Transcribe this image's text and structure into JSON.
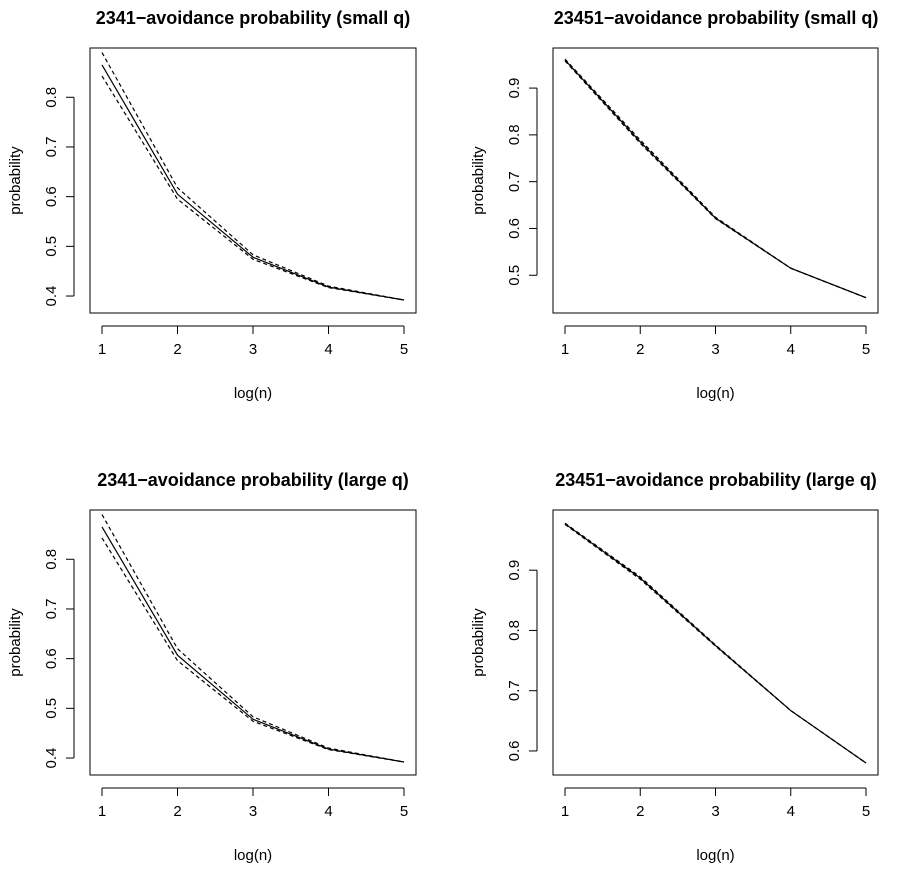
{
  "chart_data": [
    {
      "type": "line",
      "title": "2341−avoidance probability (small q)",
      "xlabel": "log(n)",
      "ylabel": "probability",
      "x": [
        1,
        2,
        3,
        4,
        5
      ],
      "xlim": [
        1,
        5
      ],
      "ylim": [
        0.39,
        0.875
      ],
      "xticks": [
        1,
        2,
        3,
        4,
        5
      ],
      "yticks": [
        0.4,
        0.5,
        0.6,
        0.7,
        0.8
      ],
      "grid": false,
      "series": [
        {
          "values": [
            0.865,
            0.605,
            0.478,
            0.418,
            0.392
          ],
          "style": "solid"
        },
        {
          "values": [
            0.89,
            0.618,
            0.483,
            0.42,
            0.392
          ],
          "style": "dashed"
        },
        {
          "values": [
            0.843,
            0.595,
            0.474,
            0.417,
            0.392
          ],
          "style": "dashed"
        }
      ]
    },
    {
      "type": "line",
      "title": "23451−avoidance probability (small q)",
      "xlabel": "log(n)",
      "ylabel": "probability",
      "x": [
        1,
        2,
        3,
        4,
        5
      ],
      "xlim": [
        1,
        5
      ],
      "ylim": [
        0.445,
        0.96
      ],
      "xticks": [
        1,
        2,
        3,
        4,
        5
      ],
      "yticks": [
        0.5,
        0.6,
        0.7,
        0.8,
        0.9
      ],
      "grid": false,
      "series": [
        {
          "values": [
            0.96,
            0.785,
            0.622,
            0.515,
            0.452
          ],
          "style": "solid"
        },
        {
          "values": [
            0.962,
            0.789,
            0.624,
            0.515,
            0.452
          ],
          "style": "dashed"
        },
        {
          "values": [
            0.958,
            0.782,
            0.621,
            0.515,
            0.452
          ],
          "style": "dashed"
        }
      ]
    },
    {
      "type": "line",
      "title": "2341−avoidance probability (large q)",
      "xlabel": "log(n)",
      "ylabel": "probability",
      "x": [
        1,
        2,
        3,
        4,
        5
      ],
      "xlim": [
        1,
        5
      ],
      "ylim": [
        0.39,
        0.875
      ],
      "xticks": [
        1,
        2,
        3,
        4,
        5
      ],
      "yticks": [
        0.4,
        0.5,
        0.6,
        0.7,
        0.8
      ],
      "grid": false,
      "series": [
        {
          "values": [
            0.865,
            0.607,
            0.478,
            0.418,
            0.392
          ],
          "style": "solid"
        },
        {
          "values": [
            0.89,
            0.62,
            0.483,
            0.42,
            0.392
          ],
          "style": "dashed"
        },
        {
          "values": [
            0.843,
            0.596,
            0.474,
            0.417,
            0.392
          ],
          "style": "dashed"
        }
      ]
    },
    {
      "type": "line",
      "title": "23451−avoidance probability (large q)",
      "xlabel": "log(n)",
      "ylabel": "probability",
      "x": [
        1,
        2,
        3,
        4,
        5
      ],
      "xlim": [
        1,
        5
      ],
      "ylim": [
        0.58,
        0.98
      ],
      "xticks": [
        1,
        2,
        3,
        4,
        5
      ],
      "yticks": [
        0.6,
        0.7,
        0.8,
        0.9
      ],
      "grid": false,
      "series": [
        {
          "values": [
            0.977,
            0.887,
            0.775,
            0.667,
            0.58
          ],
          "style": "solid"
        },
        {
          "values": [
            0.978,
            0.889,
            0.776,
            0.667,
            0.58
          ],
          "style": "dashed"
        },
        {
          "values": [
            0.976,
            0.885,
            0.774,
            0.667,
            0.58
          ],
          "style": "dashed"
        }
      ]
    }
  ]
}
